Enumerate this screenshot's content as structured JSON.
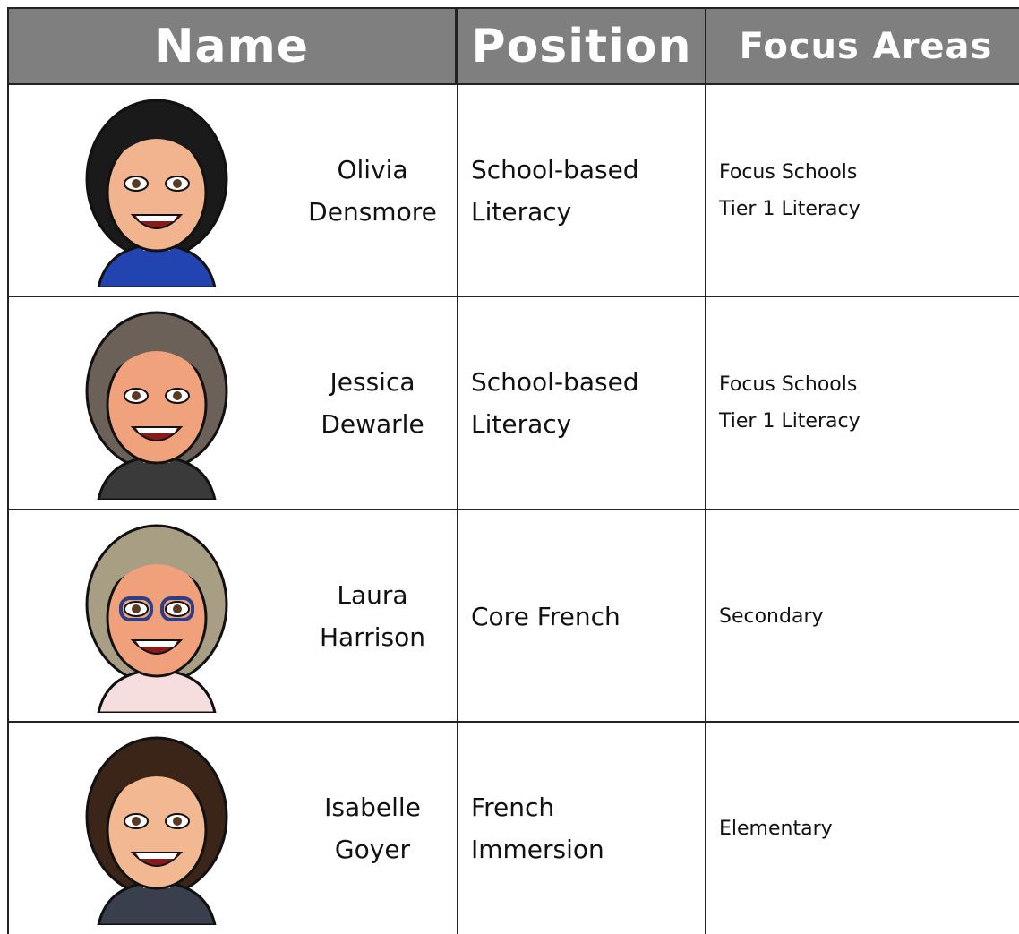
{
  "header": {
    "columns": [
      "Name",
      "Position",
      "Focus Areas"
    ]
  },
  "table": {
    "rows": [
      {
        "name": "Olivia Densmore",
        "position": "School-based Literacy",
        "focus": [
          "Focus Schools",
          "Tier 1 Literacy"
        ]
      },
      {
        "name": "Jessica Dewarle",
        "position": "School-based Literacy",
        "focus": [
          "Focus Schools",
          "Tier 1 Literacy"
        ]
      },
      {
        "name": "Laura Harrison",
        "position": "Core French",
        "focus": [
          "Secondary"
        ]
      },
      {
        "name": "Isabelle Goyer",
        "position": "French Immersion",
        "focus": [
          "Elementary"
        ]
      }
    ]
  }
}
